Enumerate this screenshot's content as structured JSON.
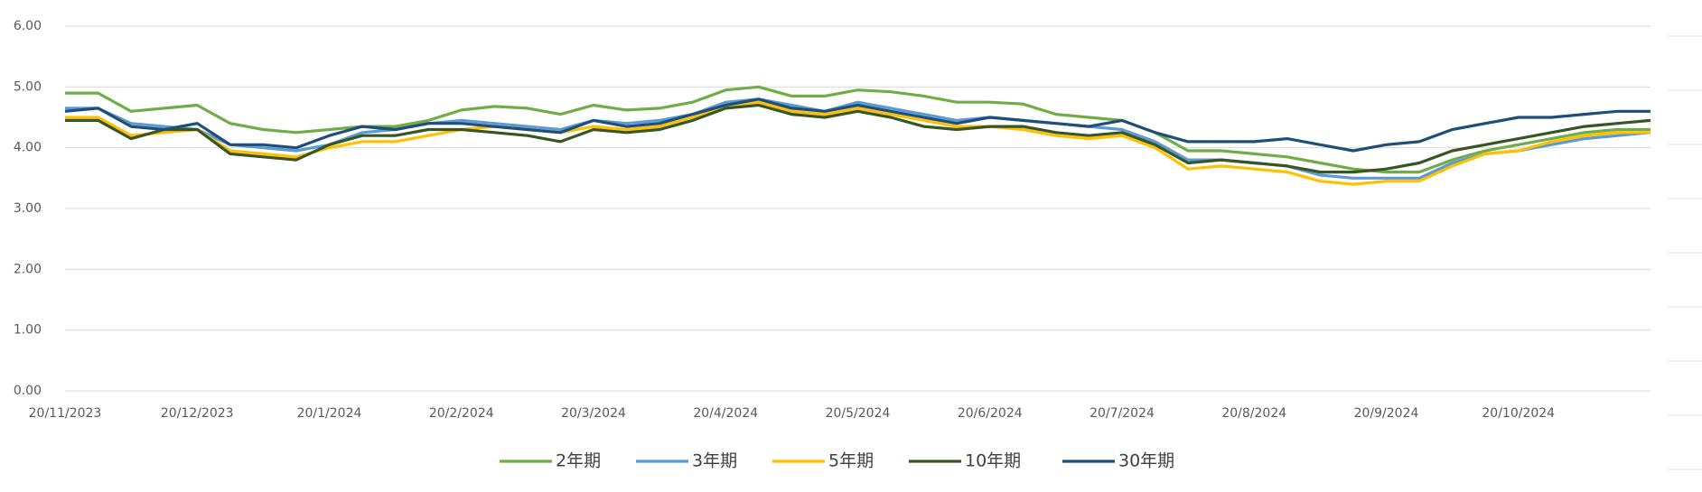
{
  "chart_data": {
    "type": "line",
    "categories": [
      "20/11/2023",
      null,
      null,
      null,
      "20/12/2023",
      null,
      null,
      null,
      "20/1/2024",
      null,
      null,
      null,
      "20/2/2024",
      null,
      null,
      null,
      "20/3/2024",
      null,
      null,
      null,
      "20/4/2024",
      null,
      null,
      null,
      "20/5/2024",
      null,
      null,
      null,
      "20/6/2024",
      null,
      null,
      null,
      "20/7/2024",
      null,
      null,
      null,
      "20/8/2024",
      null,
      null,
      null,
      "20/9/2024",
      null,
      null,
      null,
      "20/10/2024",
      null,
      null,
      null,
      null
    ],
    "series": [
      {
        "name": "2年期",
        "color": "#70ad47",
        "values": [
          4.9,
          4.9,
          4.6,
          4.65,
          4.7,
          4.4,
          4.3,
          4.25,
          4.3,
          4.35,
          4.35,
          4.45,
          4.62,
          4.68,
          4.65,
          4.55,
          4.7,
          4.62,
          4.65,
          4.75,
          4.95,
          5.0,
          4.85,
          4.85,
          4.95,
          4.92,
          4.85,
          4.75,
          4.75,
          4.72,
          4.55,
          4.5,
          4.45,
          4.25,
          3.95,
          3.95,
          3.9,
          3.85,
          3.75,
          3.65,
          3.6,
          3.6,
          3.8,
          3.95,
          4.05,
          4.15,
          4.25,
          4.3,
          4.3
        ]
      },
      {
        "name": "3年期",
        "color": "#5b9bd5",
        "values": [
          4.65,
          4.65,
          4.4,
          4.35,
          4.3,
          4.05,
          4.0,
          3.95,
          4.05,
          4.25,
          4.3,
          4.4,
          4.45,
          4.4,
          4.35,
          4.3,
          4.45,
          4.4,
          4.45,
          4.55,
          4.75,
          4.8,
          4.7,
          4.6,
          4.75,
          4.65,
          4.55,
          4.45,
          4.5,
          4.45,
          4.4,
          4.35,
          4.3,
          4.1,
          3.8,
          3.8,
          3.75,
          3.7,
          3.55,
          3.5,
          3.5,
          3.5,
          3.75,
          3.9,
          3.95,
          4.05,
          4.15,
          4.2,
          4.25
        ]
      },
      {
        "name": "5年期",
        "color": "#ffc000",
        "values": [
          4.5,
          4.5,
          4.2,
          4.25,
          4.3,
          3.95,
          3.9,
          3.85,
          4.0,
          4.1,
          4.1,
          4.2,
          4.3,
          4.35,
          4.3,
          4.25,
          4.35,
          4.3,
          4.35,
          4.5,
          4.7,
          4.75,
          4.6,
          4.55,
          4.65,
          4.55,
          4.45,
          4.35,
          4.35,
          4.3,
          4.2,
          4.15,
          4.2,
          4.0,
          3.65,
          3.7,
          3.65,
          3.6,
          3.45,
          3.4,
          3.45,
          3.45,
          3.7,
          3.9,
          3.95,
          4.1,
          4.2,
          4.25,
          4.25
        ]
      },
      {
        "name": "10年期",
        "color": "#375623",
        "values": [
          4.45,
          4.45,
          4.15,
          4.3,
          4.3,
          3.9,
          3.85,
          3.8,
          4.05,
          4.2,
          4.2,
          4.3,
          4.3,
          4.25,
          4.2,
          4.1,
          4.3,
          4.25,
          4.3,
          4.45,
          4.65,
          4.7,
          4.55,
          4.5,
          4.6,
          4.5,
          4.35,
          4.3,
          4.35,
          4.35,
          4.25,
          4.2,
          4.25,
          4.05,
          3.75,
          3.8,
          3.75,
          3.7,
          3.6,
          3.6,
          3.65,
          3.75,
          3.95,
          4.05,
          4.15,
          4.25,
          4.35,
          4.4,
          4.45
        ]
      },
      {
        "name": "30年期",
        "color": "#1f4e79",
        "values": [
          4.6,
          4.65,
          4.35,
          4.3,
          4.4,
          4.05,
          4.05,
          4.0,
          4.2,
          4.35,
          4.3,
          4.4,
          4.4,
          4.35,
          4.3,
          4.25,
          4.45,
          4.35,
          4.4,
          4.55,
          4.7,
          4.8,
          4.65,
          4.6,
          4.7,
          4.6,
          4.5,
          4.4,
          4.5,
          4.45,
          4.4,
          4.35,
          4.45,
          4.25,
          4.1,
          4.1,
          4.1,
          4.15,
          4.05,
          3.95,
          4.05,
          4.1,
          4.3,
          4.4,
          4.5,
          4.5,
          4.55,
          4.6,
          4.6
        ]
      }
    ],
    "ylim": [
      0,
      6
    ],
    "yticks": [
      {
        "value": 0,
        "label": "0.00"
      },
      {
        "value": 1,
        "label": "1.00"
      },
      {
        "value": 2,
        "label": "2.00"
      },
      {
        "value": 3,
        "label": "3.00"
      },
      {
        "value": 4,
        "label": "4.00"
      },
      {
        "value": 5,
        "label": "5.00"
      },
      {
        "value": 6,
        "label": "6.00"
      }
    ],
    "grid": true,
    "legend": "bottom"
  }
}
